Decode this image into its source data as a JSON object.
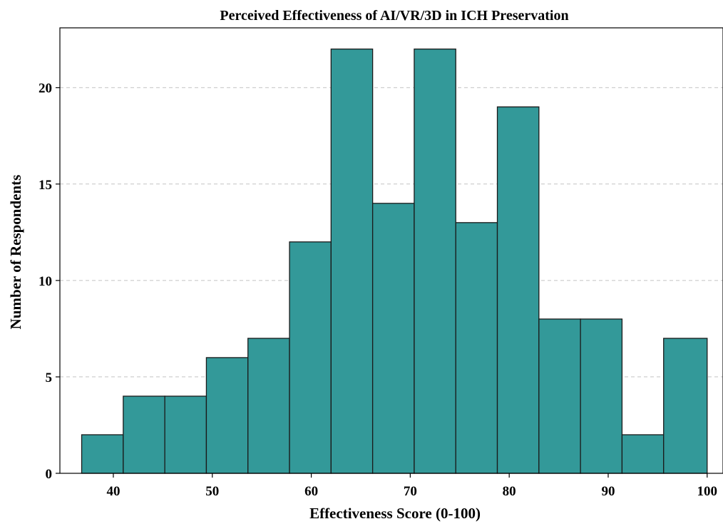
{
  "chart_data": {
    "type": "bar",
    "title": "Perceived Effectiveness of AI/VR/3D in ICH Preservation",
    "xlabel": "Effectiveness Score (0-100)",
    "ylabel": "Number of Respondents",
    "bin_edges": [
      36.8,
      41.0,
      45.2,
      49.4,
      53.6,
      57.8,
      62.0,
      66.2,
      70.4,
      74.6,
      78.8,
      83.0,
      87.2,
      91.4,
      95.6,
      100.0
    ],
    "values": [
      2,
      4,
      4,
      6,
      7,
      12,
      22,
      14,
      22,
      13,
      19,
      8,
      8,
      2,
      7
    ],
    "xlim": [
      34.6,
      101.6
    ],
    "ylim": [
      0,
      23.1
    ],
    "xticks": [
      "40",
      "50",
      "60",
      "70",
      "80",
      "90",
      "100"
    ],
    "yticks": [
      "0",
      "5",
      "10",
      "15",
      "20"
    ],
    "grid": "y-dashed",
    "bar_color": "#339999",
    "edge_color": "#1a1a1a"
  }
}
